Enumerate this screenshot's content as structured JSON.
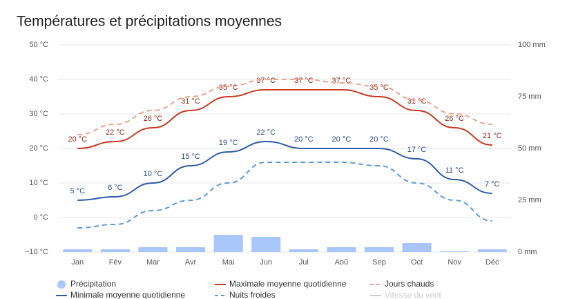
{
  "chart_data": {
    "type": "combo",
    "title": "Températures et précipitations moyennes",
    "categories": [
      "Jan",
      "Fév",
      "Mar",
      "Avr",
      "Mai",
      "Jun",
      "Jul",
      "Aoû",
      "Sep",
      "Oct",
      "Nov",
      "Déc"
    ],
    "ylim": [
      -10,
      50
    ],
    "yticks": [
      {
        "value": -10,
        "label": "−10 °C"
      },
      {
        "value": 0,
        "label": "0 °C"
      },
      {
        "value": 10,
        "label": "10 °C"
      },
      {
        "value": 20,
        "label": "20 °C"
      },
      {
        "value": 30,
        "label": "30 °C"
      },
      {
        "value": 40,
        "label": "40 °C"
      },
      {
        "value": 50,
        "label": "50 °C"
      }
    ],
    "y2lim": [
      0,
      100
    ],
    "y2ticks": [
      {
        "value": 0,
        "label": "0 mm"
      },
      {
        "value": 25,
        "label": "25 mm"
      },
      {
        "value": 50,
        "label": "50 mm"
      },
      {
        "value": 75,
        "label": "75 mm"
      },
      {
        "value": 100,
        "label": "100 mm"
      }
    ],
    "grid": true,
    "series": [
      {
        "name": "Précipitation",
        "kind": "bar",
        "axis": "y2",
        "color": "#a8c6fa",
        "values": [
          1,
          1,
          2,
          2,
          8,
          7,
          1,
          2,
          2,
          4,
          0,
          1
        ]
      },
      {
        "name": "Maximale moyenne quotidienne",
        "kind": "line",
        "color": "#c8381e",
        "values": [
          20,
          22,
          26,
          31,
          35,
          37,
          37,
          37,
          35,
          31,
          26,
          21
        ],
        "value_labels": [
          "20 °C",
          "22 °C",
          "26 °C",
          "31 °C",
          "35 °C",
          "37 °C",
          "37 °C",
          "37 °C",
          "35 °C",
          "31 °C",
          "26 °C",
          "21 °C"
        ]
      },
      {
        "name": "Jours chauds",
        "kind": "dashed",
        "color": "#f0a08a",
        "values": [
          24,
          27,
          31,
          35,
          38,
          40,
          40,
          39,
          38,
          34,
          30,
          27
        ]
      },
      {
        "name": "Minimale moyenne quotidienne",
        "kind": "line",
        "color": "#2a5aa8",
        "values": [
          5,
          6,
          10,
          15,
          19,
          22,
          20,
          20,
          20,
          17,
          11,
          7
        ],
        "value_labels": [
          "5 °C",
          "6 °C",
          "10 °C",
          "15 °C",
          "19 °C",
          "22 °C",
          "20 °C",
          "20 °C",
          "20 °C",
          "17 °C",
          "11 °C",
          "7 °C"
        ]
      },
      {
        "name": "Nuits froides",
        "kind": "dashed",
        "color": "#5b9bd5",
        "values": [
          -3,
          -2,
          2,
          5,
          10,
          16,
          16,
          16,
          15,
          10,
          5,
          -1
        ]
      }
    ],
    "hidden_series": [
      {
        "name": "Vitesse du vent",
        "color": "#cccccc"
      }
    ]
  }
}
